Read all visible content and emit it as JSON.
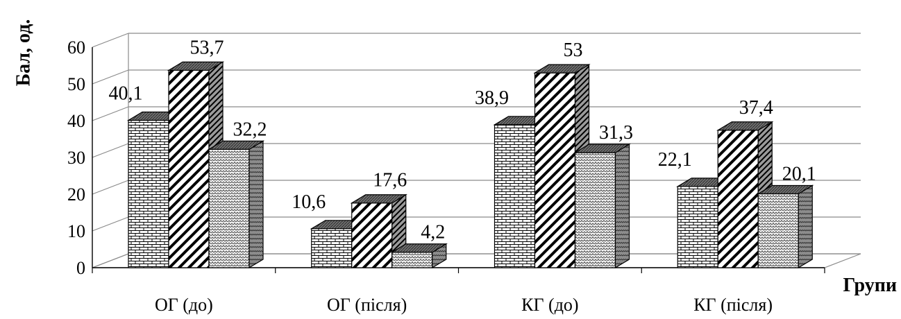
{
  "chart_data": {
    "type": "bar",
    "categories": [
      "ОГ (до)",
      "ОГ (після)",
      "КГ (до)",
      "КГ (після)"
    ],
    "series": [
      {
        "values": [
          40.1,
          10.6,
          38.9,
          22.1
        ],
        "labels": [
          "40,1",
          "10,6",
          "38,9",
          "22,1"
        ],
        "pattern": "brick"
      },
      {
        "values": [
          53.7,
          17.6,
          53,
          37.4
        ],
        "labels": [
          "53,7",
          "17,6",
          "53",
          "37,4"
        ],
        "pattern": "diagonal"
      },
      {
        "values": [
          32.2,
          4.2,
          31.3,
          20.1
        ],
        "labels": [
          "32,2",
          "4,2",
          "31,3",
          "20,1"
        ],
        "pattern": "weave"
      }
    ],
    "y_ticks": [
      "0",
      "10",
      "20",
      "30",
      "40",
      "50",
      "60"
    ],
    "ylim": [
      0,
      60
    ],
    "ylabel": "Бал, од.",
    "xlabel": "Групи",
    "grid": true,
    "three_d": true
  }
}
